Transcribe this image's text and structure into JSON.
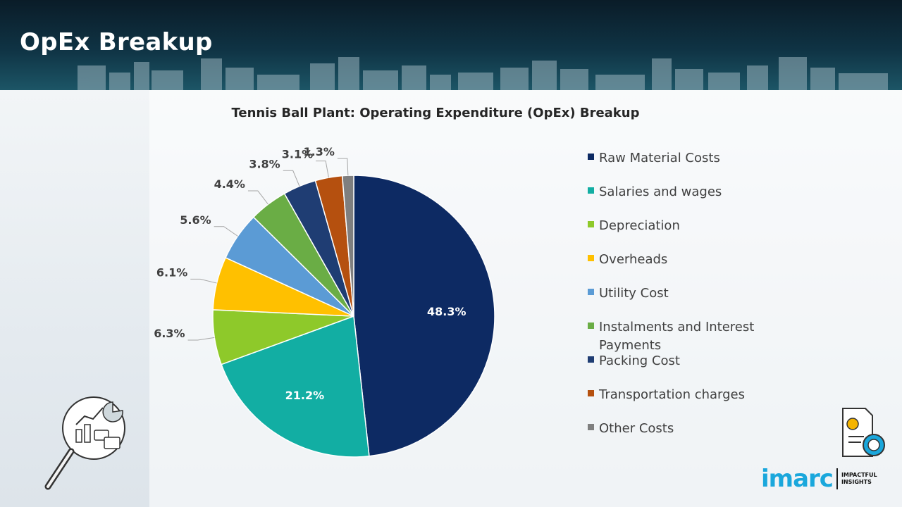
{
  "page": {
    "title": "OpEx Breakup"
  },
  "chart_data": {
    "type": "pie",
    "title": "Tennis Ball Plant: Operating Expenditure (OpEx) Breakup",
    "start_angle_deg": 0,
    "direction": "clockwise",
    "legend_position": "right",
    "slices": [
      {
        "label": "Raw Material Costs",
        "value": 48.3,
        "display": "48.3%",
        "color": "#0d2a63",
        "label_style": "inside"
      },
      {
        "label": "Salaries and wages",
        "value": 21.2,
        "display": "21.2%",
        "color": "#12aea3",
        "label_style": "inside"
      },
      {
        "label": "Depreciation",
        "value": 6.3,
        "display": "6.3%",
        "color": "#8ec92a",
        "label_style": "outside"
      },
      {
        "label": "Overheads",
        "value": 6.1,
        "display": "6.1%",
        "color": "#ffc000",
        "label_style": "outside"
      },
      {
        "label": "Utility Cost",
        "value": 5.6,
        "display": "5.6%",
        "color": "#5b9bd5",
        "label_style": "outside"
      },
      {
        "label": "Instalments and Interest Payments",
        "value": 4.4,
        "display": "4.4%",
        "color": "#6aad45",
        "label_style": "outside"
      },
      {
        "label": "Packing Cost",
        "value": 3.8,
        "display": "3.8%",
        "color": "#1f3d73",
        "label_style": "outside"
      },
      {
        "label": "Transportation charges",
        "value": 3.1,
        "display": "3.1%",
        "color": "#b5500f",
        "label_style": "outside"
      },
      {
        "label": "Other Costs",
        "value": 1.3,
        "display": "1.3%",
        "color": "#7f7f7f",
        "label_style": "outside"
      }
    ]
  },
  "branding": {
    "name": "imarc",
    "tagline_line1": "IMPACTFUL",
    "tagline_line2": "INSIGHTS"
  },
  "icons": {
    "left": "analytics-magnifier-icon",
    "right": "invoice-dollar-gear-icon"
  }
}
